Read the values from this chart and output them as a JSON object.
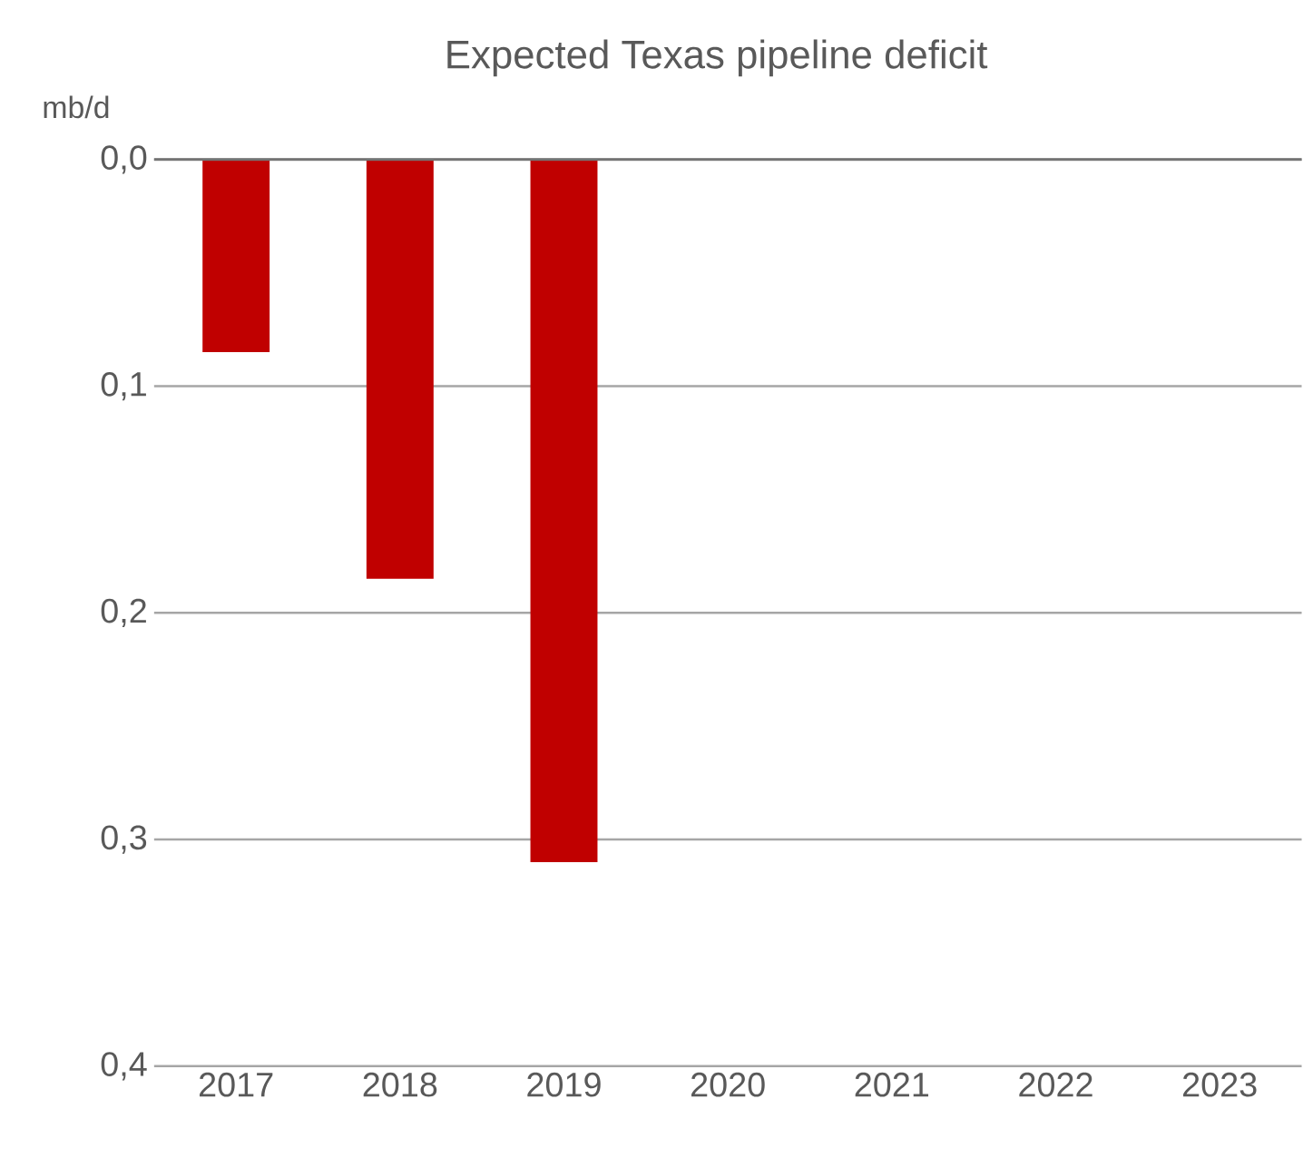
{
  "chart_data": {
    "type": "bar",
    "title": "Expected Texas pipeline deficit",
    "ylabel": "mb/d",
    "categories": [
      "2017",
      "2018",
      "2019",
      "2020",
      "2021",
      "2022",
      "2023"
    ],
    "values": [
      0.085,
      0.185,
      0.31,
      null,
      null,
      null,
      null
    ],
    "color": "#c00000",
    "ylim": [
      0.4,
      0
    ],
    "yticks": [
      {
        "value": 0,
        "label": "0,0"
      },
      {
        "value": 0.1,
        "label": "0,1"
      },
      {
        "value": 0.2,
        "label": "0,2"
      },
      {
        "value": 0.3,
        "label": "0,3"
      },
      {
        "value": 0.4,
        "label": "0,4"
      }
    ],
    "grid": "y"
  }
}
